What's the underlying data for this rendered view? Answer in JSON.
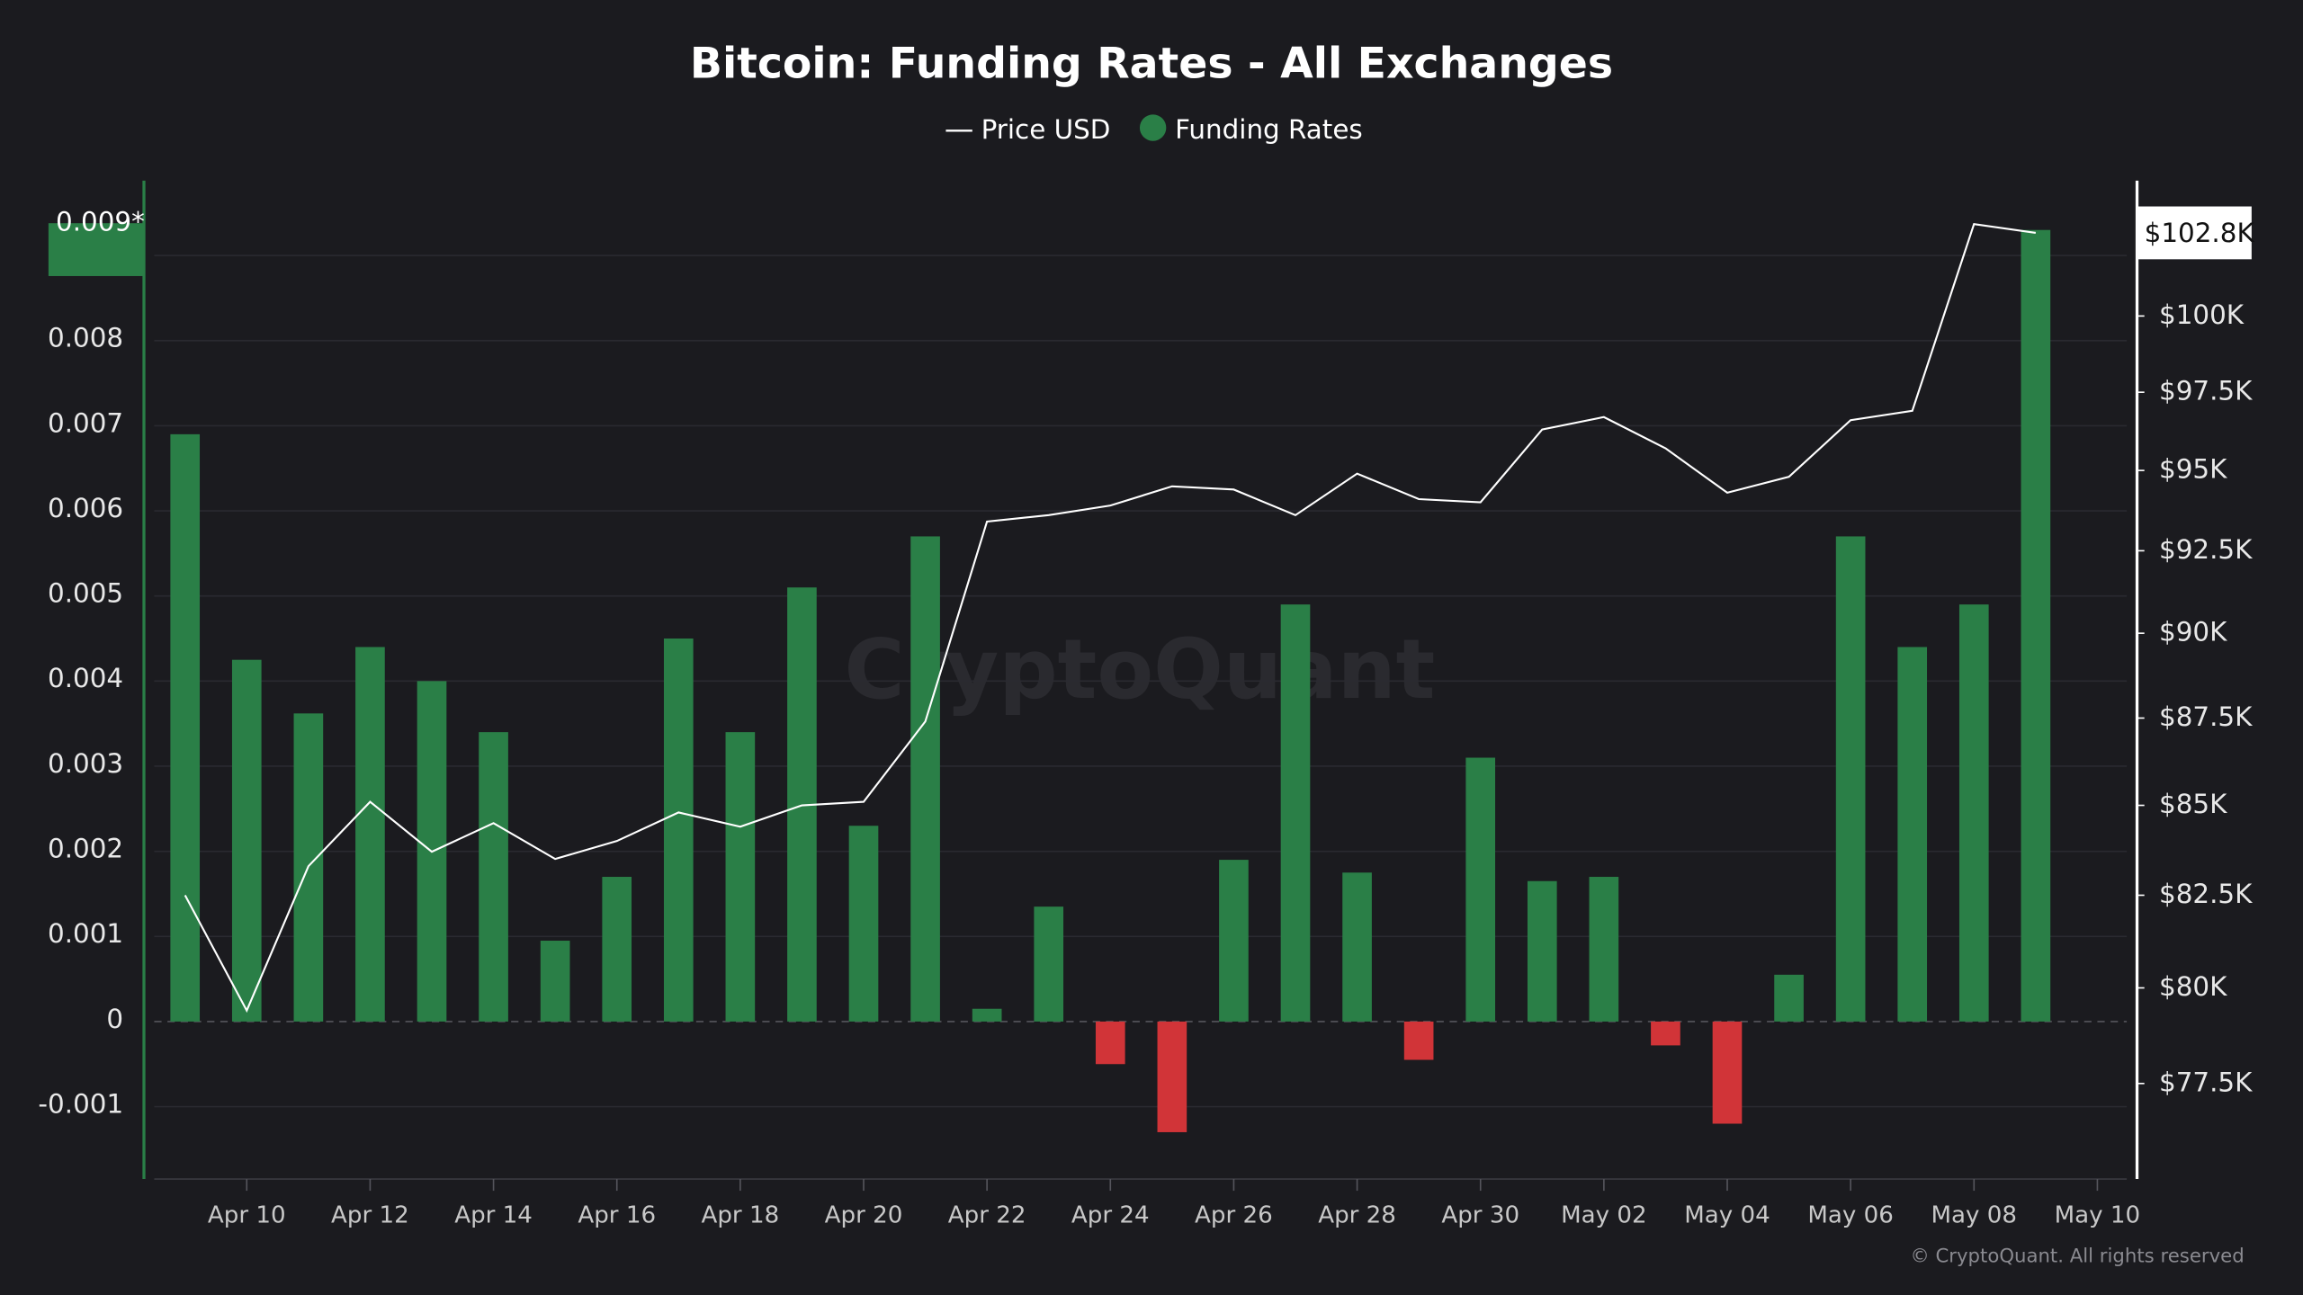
{
  "chart_data": {
    "type": "bar",
    "title": "Bitcoin: Funding Rates - All Exchanges",
    "categories": [
      null,
      "Apr 10",
      null,
      "Apr 12",
      null,
      "Apr 14",
      null,
      "Apr 16",
      null,
      "Apr 18",
      null,
      "Apr 20",
      null,
      "Apr 22",
      null,
      "Apr 24",
      null,
      "Apr 26",
      null,
      "Apr 28",
      null,
      "Apr 30",
      null,
      "May 02",
      null,
      "May 04",
      null,
      "May 06",
      null,
      "May 08",
      null,
      "May 10"
    ],
    "series": [
      {
        "name": "Price USD",
        "type": "line",
        "axis": "y2",
        "color": "#ffffff",
        "values": [
          82500,
          79400,
          83300,
          85100,
          83700,
          84500,
          83500,
          84000,
          84800,
          84400,
          85000,
          85100,
          87400,
          93400,
          93600,
          93900,
          94500,
          94400,
          93600,
          94900,
          94100,
          94000,
          96300,
          96700,
          95700,
          94300,
          94800,
          96600,
          96900,
          103100,
          102800,
          null
        ]
      },
      {
        "name": "Funding Rates",
        "type": "bar",
        "color": "#2a7f47",
        "negative_color": "#d13438",
        "values": [
          0.0069,
          0.00425,
          0.00362,
          0.0044,
          0.004,
          0.0034,
          0.00095,
          0.0017,
          0.0045,
          0.0034,
          0.0051,
          0.0023,
          0.0057,
          0.00015,
          0.00135,
          -0.0005,
          -0.0013,
          0.0019,
          0.0049,
          0.00175,
          -0.00045,
          0.0031,
          0.00165,
          0.0017,
          -0.00028,
          -0.0012,
          0.00055,
          0.0057,
          0.0044,
          0.0049,
          0.0093,
          null
        ]
      }
    ],
    "ylim": [
      -0.00185,
      0.00988
    ],
    "yticks": [
      -0.001,
      0,
      0.001,
      0.002,
      0.003,
      0.004,
      0.005,
      0.006,
      0.007,
      0.008,
      0.009
    ],
    "y2lim": [
      75080,
      104600
    ],
    "y2log": true,
    "y2ticks": [
      {
        "value": 77500,
        "label": "$77.5K"
      },
      {
        "value": 80000,
        "label": "$80K"
      },
      {
        "value": 82500,
        "label": "$82.5K"
      },
      {
        "value": 85000,
        "label": "$85K"
      },
      {
        "value": 87500,
        "label": "$87.5K"
      },
      {
        "value": 90000,
        "label": "$90K"
      },
      {
        "value": 92500,
        "label": "$92.5K"
      },
      {
        "value": 95000,
        "label": "$95K"
      },
      {
        "value": 97500,
        "label": "$97.5K"
      },
      {
        "value": 100000,
        "label": "$100K"
      }
    ],
    "y_marker": {
      "value": 0.009,
      "label": "0.009*"
    },
    "y2_marker": {
      "value": 102800,
      "label": "$102.8K"
    },
    "grid": true,
    "watermark": "CryptoQuant",
    "footer": "© CryptoQuant. All rights reserved"
  }
}
